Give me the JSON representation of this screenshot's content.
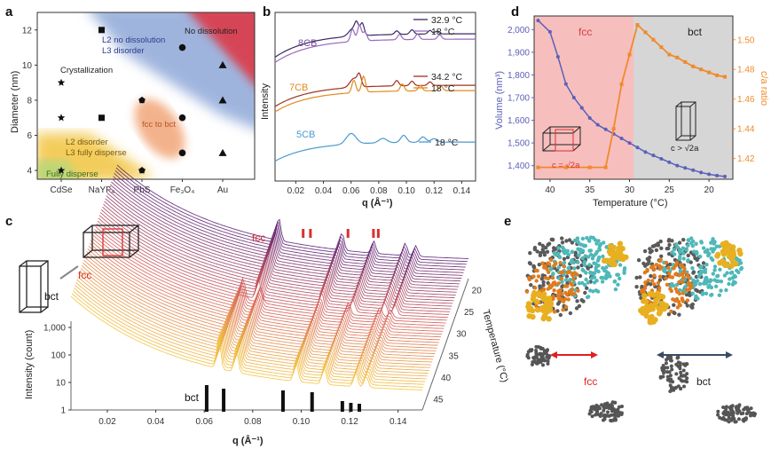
{
  "panels": {
    "a": {
      "letter": "a",
      "ylabel": "Diameter (nm)",
      "yticks": [
        "4",
        "6",
        "8",
        "10",
        "12"
      ],
      "xticks": [
        "CdSe",
        "NaYF₄",
        "PbS",
        "Fe₃O₄",
        "Au"
      ],
      "regions": {
        "no_dissolution": "No dissolution",
        "l2_no_dissolution": "L2 no dissolution",
        "l3_disorder": "L3 disorder",
        "crystallization": "Crystallization",
        "fcc_to_bct": "fcc to bct",
        "l2_disorder": "L2 disorder",
        "l3_fully_disperse": "L3 fully disperse",
        "fully_disperse": "Fully disperse"
      },
      "colors": {
        "red": "#d9404f",
        "blue": "#8fa8d8",
        "orange": "#f0a070",
        "yellow": "#f2c84b",
        "green": "#b9d77a"
      }
    },
    "b": {
      "letter": "b",
      "ylabel": "Intensity",
      "xlabel": "q (Å⁻¹)",
      "xticks": [
        "0.02",
        "0.04",
        "0.06",
        "0.08",
        "0.10",
        "0.12",
        "0.14"
      ],
      "series": [
        {
          "name": "8CB",
          "color": "#7a4d9a",
          "legend": [
            "32.9 °C",
            "18 °C"
          ]
        },
        {
          "name": "7CB",
          "color": "#e08a1e",
          "legend": [
            "34.2 °C",
            "18 °C"
          ]
        },
        {
          "name": "5CB",
          "color": "#4a9ad0",
          "legend": [
            "18 °C"
          ]
        }
      ]
    },
    "c": {
      "letter": "c",
      "ylabel": "Intensity (count)",
      "xlabel": "q (Å⁻¹)",
      "zlabel": "Temperature (°C)",
      "yticks": [
        "1",
        "10",
        "100",
        "1,000"
      ],
      "xticks": [
        "0.02",
        "0.04",
        "0.06",
        "0.08",
        "0.10",
        "0.12",
        "0.14"
      ],
      "zticks": [
        "20",
        "25",
        "30",
        "35",
        "40",
        "45"
      ],
      "fcc_label": "fcc",
      "bct_label": "bct",
      "fcc_peaks": [
        0.0935,
        0.0965,
        0.112,
        0.1225,
        0.1245
      ],
      "bct_peaks": [
        0.061,
        0.068,
        0.0925,
        0.1045,
        0.117,
        0.1205,
        0.124
      ]
    },
    "d": {
      "letter": "d",
      "ylabel_left": "Volume (nm³)",
      "ylabel_right": "c/a ratio",
      "xlabel": "Temperature (°C)",
      "yticks_left": [
        "1,400",
        "1,500",
        "1,600",
        "1,700",
        "1,800",
        "1,900",
        "2,000"
      ],
      "yticks_right": [
        "1.42",
        "1.44",
        "1.46",
        "1.48",
        "1.50"
      ],
      "xticks": [
        "40",
        "35",
        "30",
        "25",
        "20"
      ],
      "fcc_label": "fcc",
      "bct_label": "bct",
      "eq_fcc": "c = √2a",
      "eq_bct": "c > √2a",
      "colors": {
        "volume": "#5a60b8",
        "ratio": "#f08a2a",
        "fcc_bg": "#f6b3b3",
        "bct_bg": "#cfcfcf"
      }
    },
    "e": {
      "letter": "e",
      "fcc_label": "fcc",
      "bct_label": "bct"
    }
  },
  "chart_data": [
    {
      "type": "scatter",
      "title": "",
      "ylabel": "Diameter (nm)",
      "categories": [
        "CdSe",
        "NaYF4",
        "PbS",
        "Fe3O4",
        "Au"
      ],
      "ylim": [
        3.5,
        13
      ],
      "series": [
        {
          "name": "star",
          "marker": "star",
          "points": [
            [
              "CdSe",
              4
            ],
            [
              "CdSe",
              7
            ],
            [
              "CdSe",
              9
            ],
            [
              "PbS",
              4
            ]
          ]
        },
        {
          "name": "square",
          "marker": "square",
          "points": [
            [
              "NaYF4",
              7
            ],
            [
              "NaYF4",
              12
            ]
          ]
        },
        {
          "name": "pentagon",
          "marker": "pentagon",
          "points": [
            [
              "PbS",
              4
            ],
            [
              "PbS",
              8
            ]
          ]
        },
        {
          "name": "circle",
          "marker": "circle",
          "points": [
            [
              "Fe3O4",
              5
            ],
            [
              "Fe3O4",
              7
            ],
            [
              "Fe3O4",
              11
            ]
          ]
        },
        {
          "name": "triangle",
          "marker": "triangle",
          "points": [
            [
              "Au",
              5
            ],
            [
              "Au",
              8
            ],
            [
              "Au",
              10
            ]
          ]
        }
      ]
    },
    {
      "type": "line",
      "xlabel": "Temperature (°C)",
      "ylabel": "Volume (nm³)",
      "xlim": [
        42,
        17
      ],
      "ylim": [
        1340,
        2060
      ],
      "series": [
        {
          "name": "Volume (nm³)",
          "x": [
            41.5,
            40,
            39,
            38,
            37,
            36,
            35,
            34,
            33,
            32,
            31,
            30,
            29,
            28,
            27,
            26,
            25,
            24,
            23,
            22,
            21,
            20,
            19,
            18
          ],
          "values": [
            2040,
            1990,
            1880,
            1760,
            1700,
            1655,
            1610,
            1580,
            1560,
            1540,
            1520,
            1500,
            1480,
            1460,
            1445,
            1430,
            1415,
            1400,
            1390,
            1380,
            1370,
            1362,
            1356,
            1352
          ]
        },
        {
          "name": "c/a ratio",
          "x": [
            41.5,
            38,
            35,
            33,
            32,
            31,
            30,
            29,
            28,
            27,
            26,
            25,
            24,
            23,
            22,
            21,
            20,
            19,
            18
          ],
          "values": [
            1.414,
            1.414,
            1.414,
            1.414,
            1.44,
            1.47,
            1.49,
            1.51,
            1.505,
            1.5,
            1.495,
            1.49,
            1.488,
            1.485,
            1.482,
            1.48,
            1.478,
            1.476,
            1.475
          ]
        }
      ]
    }
  ]
}
